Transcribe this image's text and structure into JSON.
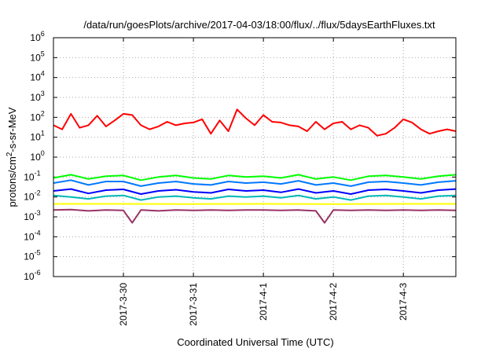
{
  "chart_data": {
    "type": "line",
    "title": "/data/run/goesPlots/archive/2017-04-03/18:00/flux/../flux/5daysEarthFluxes.txt",
    "xlabel": "Coordinated Universal Time (UTC)",
    "ylabel": {
      "prefix": "protons/cm",
      "sup": "2",
      "suffix": "-s-sr-MeV"
    },
    "yscale": "log",
    "ylim": [
      1e-06,
      1000000.0
    ],
    "yticks": [
      {
        "value": 1e-06,
        "label": "10",
        "exp": "-6"
      },
      {
        "value": 1e-05,
        "label": "10",
        "exp": "-5"
      },
      {
        "value": 0.0001,
        "label": "10",
        "exp": "-4"
      },
      {
        "value": 0.001,
        "label": "10",
        "exp": "-3"
      },
      {
        "value": 0.01,
        "label": "10",
        "exp": "-2"
      },
      {
        "value": 0.1,
        "label": "10",
        "exp": "-1"
      },
      {
        "value": 1.0,
        "label": "10",
        "exp": "0"
      },
      {
        "value": 10.0,
        "label": "10",
        "exp": "1"
      },
      {
        "value": 100.0,
        "label": "10",
        "exp": "2"
      },
      {
        "value": 1000.0,
        "label": "10",
        "exp": "3"
      },
      {
        "value": 10000.0,
        "label": "10",
        "exp": "4"
      },
      {
        "value": 100000.0,
        "label": "10",
        "exp": "5"
      },
      {
        "value": 1000000.0,
        "label": "10",
        "exp": "6"
      }
    ],
    "xlim": [
      "2017-03-29T00:00",
      "2017-04-03T18:00"
    ],
    "xticks": [
      {
        "value": "2017-03-30T00:00",
        "label": "2017-3-30"
      },
      {
        "value": "2017-03-31T00:00",
        "label": "2017-3-31"
      },
      {
        "value": "2017-04-01T00:00",
        "label": "2017-4-1"
      },
      {
        "value": "2017-04-02T00:00",
        "label": "2017-4-2"
      },
      {
        "value": "2017-04-03T00:00",
        "label": "2017-4-3"
      }
    ],
    "grid": true,
    "series": [
      {
        "color": "#ff0000",
        "x": [
          "2017-03-29T00:00",
          "2017-03-29T03:00",
          "2017-03-29T06:00",
          "2017-03-29T09:00",
          "2017-03-29T12:00",
          "2017-03-29T15:00",
          "2017-03-29T18:00",
          "2017-03-29T21:00",
          "2017-03-30T00:00",
          "2017-03-30T03:00",
          "2017-03-30T06:00",
          "2017-03-30T09:00",
          "2017-03-30T12:00",
          "2017-03-30T15:00",
          "2017-03-30T18:00",
          "2017-03-30T21:00",
          "2017-03-31T00:00",
          "2017-03-31T03:00",
          "2017-03-31T06:00",
          "2017-03-31T09:00",
          "2017-03-31T12:00",
          "2017-03-31T15:00",
          "2017-03-31T18:00",
          "2017-03-31T21:00",
          "2017-04-01T00:00",
          "2017-04-01T03:00",
          "2017-04-01T06:00",
          "2017-04-01T09:00",
          "2017-04-01T12:00",
          "2017-04-01T15:00",
          "2017-04-01T18:00",
          "2017-04-01T21:00",
          "2017-04-02T00:00",
          "2017-04-02T03:00",
          "2017-04-02T06:00",
          "2017-04-02T09:00",
          "2017-04-02T12:00",
          "2017-04-02T15:00",
          "2017-04-02T18:00",
          "2017-04-02T21:00",
          "2017-04-03T00:00",
          "2017-04-03T03:00",
          "2017-04-03T06:00",
          "2017-04-03T09:00",
          "2017-04-03T12:00",
          "2017-04-03T15:00",
          "2017-04-03T18:00"
        ],
        "y": [
          40,
          25,
          150,
          30,
          40,
          120,
          35,
          70,
          150,
          130,
          40,
          25,
          35,
          60,
          40,
          50,
          55,
          80,
          15,
          70,
          20,
          250,
          90,
          40,
          130,
          60,
          55,
          40,
          35,
          20,
          60,
          25,
          50,
          60,
          25,
          40,
          30,
          12,
          15,
          30,
          80,
          55,
          25,
          15,
          20,
          25,
          20
        ]
      },
      {
        "color": "#00ff00",
        "x": [
          "2017-03-29T00:00",
          "2017-03-29T06:00",
          "2017-03-29T12:00",
          "2017-03-29T18:00",
          "2017-03-30T00:00",
          "2017-03-30T06:00",
          "2017-03-30T12:00",
          "2017-03-30T18:00",
          "2017-03-31T00:00",
          "2017-03-31T06:00",
          "2017-03-31T12:00",
          "2017-03-31T18:00",
          "2017-04-01T00:00",
          "2017-04-01T06:00",
          "2017-04-01T12:00",
          "2017-04-01T18:00",
          "2017-04-02T00:00",
          "2017-04-02T06:00",
          "2017-04-02T12:00",
          "2017-04-02T18:00",
          "2017-04-03T00:00",
          "2017-04-03T06:00",
          "2017-04-03T12:00",
          "2017-04-03T18:00"
        ],
        "y": [
          0.09,
          0.13,
          0.08,
          0.11,
          0.12,
          0.07,
          0.1,
          0.12,
          0.09,
          0.08,
          0.12,
          0.1,
          0.11,
          0.09,
          0.13,
          0.08,
          0.1,
          0.07,
          0.11,
          0.12,
          0.1,
          0.08,
          0.11,
          0.13
        ]
      },
      {
        "color": "#0078ff",
        "x": [
          "2017-03-29T00:00",
          "2017-03-29T06:00",
          "2017-03-29T12:00",
          "2017-03-29T18:00",
          "2017-03-30T00:00",
          "2017-03-30T06:00",
          "2017-03-30T12:00",
          "2017-03-30T18:00",
          "2017-03-31T00:00",
          "2017-03-31T06:00",
          "2017-03-31T12:00",
          "2017-03-31T18:00",
          "2017-04-01T00:00",
          "2017-04-01T06:00",
          "2017-04-01T12:00",
          "2017-04-01T18:00",
          "2017-04-02T00:00",
          "2017-04-02T06:00",
          "2017-04-02T12:00",
          "2017-04-02T18:00",
          "2017-04-03T00:00",
          "2017-04-03T06:00",
          "2017-04-03T12:00",
          "2017-04-03T18:00"
        ],
        "y": [
          0.05,
          0.07,
          0.04,
          0.06,
          0.06,
          0.035,
          0.05,
          0.06,
          0.045,
          0.04,
          0.06,
          0.05,
          0.055,
          0.045,
          0.065,
          0.04,
          0.05,
          0.035,
          0.055,
          0.06,
          0.05,
          0.04,
          0.055,
          0.065
        ]
      },
      {
        "color": "#0000ff",
        "x": [
          "2017-03-29T00:00",
          "2017-03-29T06:00",
          "2017-03-29T12:00",
          "2017-03-29T18:00",
          "2017-03-30T00:00",
          "2017-03-30T06:00",
          "2017-03-30T12:00",
          "2017-03-30T18:00",
          "2017-03-31T00:00",
          "2017-03-31T06:00",
          "2017-03-31T12:00",
          "2017-03-31T18:00",
          "2017-04-01T00:00",
          "2017-04-01T06:00",
          "2017-04-01T12:00",
          "2017-04-01T18:00",
          "2017-04-02T00:00",
          "2017-04-02T06:00",
          "2017-04-02T12:00",
          "2017-04-02T18:00",
          "2017-04-03T00:00",
          "2017-04-03T06:00",
          "2017-04-03T12:00",
          "2017-04-03T18:00"
        ],
        "y": [
          0.02,
          0.025,
          0.015,
          0.022,
          0.024,
          0.014,
          0.02,
          0.023,
          0.018,
          0.016,
          0.024,
          0.02,
          0.022,
          0.017,
          0.025,
          0.016,
          0.02,
          0.014,
          0.022,
          0.024,
          0.02,
          0.016,
          0.022,
          0.025
        ]
      },
      {
        "color": "#00b8b8",
        "x": [
          "2017-03-29T00:00",
          "2017-03-29T06:00",
          "2017-03-29T12:00",
          "2017-03-29T18:00",
          "2017-03-30T00:00",
          "2017-03-30T06:00",
          "2017-03-30T12:00",
          "2017-03-30T18:00",
          "2017-03-31T00:00",
          "2017-03-31T06:00",
          "2017-03-31T12:00",
          "2017-03-31T18:00",
          "2017-04-01T00:00",
          "2017-04-01T06:00",
          "2017-04-01T12:00",
          "2017-04-01T18:00",
          "2017-04-02T00:00",
          "2017-04-02T06:00",
          "2017-04-02T12:00",
          "2017-04-02T18:00",
          "2017-04-03T00:00",
          "2017-04-03T06:00",
          "2017-04-03T12:00",
          "2017-04-03T18:00"
        ],
        "y": [
          0.012,
          0.01,
          0.008,
          0.011,
          0.012,
          0.007,
          0.01,
          0.011,
          0.009,
          0.008,
          0.011,
          0.01,
          0.011,
          0.009,
          0.012,
          0.008,
          0.01,
          0.007,
          0.011,
          0.012,
          0.01,
          0.008,
          0.011,
          0.012
        ]
      },
      {
        "color": "#ffff00",
        "x": [
          "2017-03-29T00:00",
          "2017-03-30T00:00",
          "2017-03-31T00:00",
          "2017-04-01T00:00",
          "2017-04-02T00:00",
          "2017-04-03T00:00",
          "2017-04-03T18:00"
        ],
        "y": [
          0.0045,
          0.0045,
          0.0044,
          0.0045,
          0.0044,
          0.0045,
          0.0045
        ]
      },
      {
        "color": "#993366",
        "x": [
          "2017-03-29T00:00",
          "2017-03-29T06:00",
          "2017-03-29T12:00",
          "2017-03-29T18:00",
          "2017-03-30T00:00",
          "2017-03-30T03:00",
          "2017-03-30T06:00",
          "2017-03-30T12:00",
          "2017-03-30T18:00",
          "2017-03-31T00:00",
          "2017-03-31T06:00",
          "2017-03-31T12:00",
          "2017-03-31T18:00",
          "2017-04-01T00:00",
          "2017-04-01T06:00",
          "2017-04-01T12:00",
          "2017-04-01T18:00",
          "2017-04-01T21:00",
          "2017-04-02T00:00",
          "2017-04-02T06:00",
          "2017-04-02T12:00",
          "2017-04-02T18:00",
          "2017-04-03T00:00",
          "2017-04-03T06:00",
          "2017-04-03T12:00",
          "2017-04-03T18:00"
        ],
        "y": [
          0.0022,
          0.0023,
          0.002,
          0.0022,
          0.0021,
          0.0005,
          0.0022,
          0.002,
          0.0022,
          0.0021,
          0.0022,
          0.0021,
          0.0022,
          0.0022,
          0.0021,
          0.0022,
          0.002,
          0.0005,
          0.0022,
          0.0021,
          0.0022,
          0.0021,
          0.0022,
          0.0021,
          0.0022,
          0.0021
        ]
      }
    ]
  }
}
